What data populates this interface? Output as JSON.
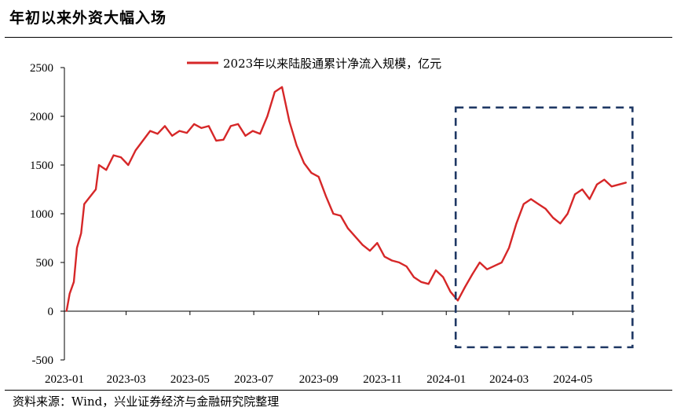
{
  "title": "年初以来外资大幅入场",
  "source": "资料来源：Wind，兴业证券经济与金融研究院整理",
  "chart_data": {
    "type": "line",
    "title": "",
    "xlabel": "",
    "ylabel": "",
    "ylim": [
      -500,
      2500
    ],
    "yticks": [
      "-500",
      "0",
      "500",
      "1000",
      "1500",
      "2000",
      "2500"
    ],
    "xticks": [
      "2023-01",
      "2023-03",
      "2023-05",
      "2023-07",
      "2023-09",
      "2023-11",
      "2024-01",
      "2024-03",
      "2024-05"
    ],
    "legend_position": "top-center",
    "grid": false,
    "series": [
      {
        "name": "2023年以来陆股通累计净流入规模，亿元",
        "color": "#d62728",
        "x": [
          "2023-01-03",
          "2023-01-06",
          "2023-01-10",
          "2023-01-13",
          "2023-01-17",
          "2023-01-20",
          "2023-01-31",
          "2023-02-03",
          "2023-02-10",
          "2023-02-17",
          "2023-02-24",
          "2023-03-03",
          "2023-03-10",
          "2023-03-17",
          "2023-03-24",
          "2023-03-31",
          "2023-04-07",
          "2023-04-14",
          "2023-04-21",
          "2023-04-28",
          "2023-05-05",
          "2023-05-12",
          "2023-05-19",
          "2023-05-26",
          "2023-06-02",
          "2023-06-09",
          "2023-06-16",
          "2023-06-23",
          "2023-06-30",
          "2023-07-07",
          "2023-07-14",
          "2023-07-21",
          "2023-07-28",
          "2023-08-04",
          "2023-08-11",
          "2023-08-18",
          "2023-08-25",
          "2023-09-01",
          "2023-09-08",
          "2023-09-15",
          "2023-09-22",
          "2023-09-29",
          "2023-10-13",
          "2023-10-20",
          "2023-10-27",
          "2023-11-03",
          "2023-11-10",
          "2023-11-17",
          "2023-11-24",
          "2023-12-01",
          "2023-12-08",
          "2023-12-15",
          "2023-12-22",
          "2023-12-29",
          "2024-01-05",
          "2024-01-12",
          "2024-01-19",
          "2024-01-26",
          "2024-02-02",
          "2024-02-09",
          "2024-02-23",
          "2024-03-01",
          "2024-03-08",
          "2024-03-15",
          "2024-03-22",
          "2024-03-29",
          "2024-04-05",
          "2024-04-12",
          "2024-04-19",
          "2024-04-26",
          "2024-05-03",
          "2024-05-10",
          "2024-05-17",
          "2024-05-24",
          "2024-05-31",
          "2024-06-07",
          "2024-06-14",
          "2024-06-21"
        ],
        "values": [
          0,
          180,
          300,
          650,
          800,
          1100,
          1250,
          1500,
          1450,
          1600,
          1580,
          1500,
          1650,
          1750,
          1850,
          1820,
          1900,
          1800,
          1850,
          1830,
          1920,
          1880,
          1900,
          1750,
          1760,
          1900,
          1920,
          1800,
          1850,
          1820,
          2000,
          2250,
          2300,
          1950,
          1700,
          1520,
          1420,
          1380,
          1180,
          1000,
          980,
          850,
          680,
          620,
          700,
          560,
          520,
          500,
          460,
          350,
          300,
          280,
          420,
          350,
          200,
          110,
          250,
          380,
          500,
          430,
          500,
          650,
          900,
          1100,
          1150,
          1100,
          1050,
          960,
          900,
          1000,
          1200,
          1250,
          1150,
          1300,
          1350,
          1280,
          1300,
          1320
        ]
      }
    ],
    "annotations": [
      {
        "type": "dashed-box",
        "x_from": "2024-01-10",
        "x_to": "2024-06-27",
        "y_from": -370,
        "y_to": 2090,
        "color": "#1f3864"
      }
    ]
  }
}
